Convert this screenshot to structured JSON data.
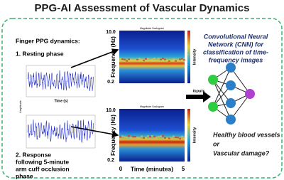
{
  "title": "PPG-AI Assessment of Vascular Dynamics",
  "left_panel": {
    "heading": "Finger PPG dynamics:",
    "phase_1": "1. Resting phase",
    "phase_2_lines": [
      "2. Response",
      "following 5-minute",
      "arm cuff occlusion",
      "phase"
    ],
    "signal_y_label": "Amplitude",
    "signal_x_label": "Time (s)"
  },
  "scalograms": [
    {
      "title": "Magnitude Scalogram",
      "y_max": "10.0",
      "y_min": "0.2",
      "y_label": "Frequency (Hz)",
      "colorbar_label": "Intensity"
    },
    {
      "title": "Magnitude Scalogram",
      "y_max": "10.0",
      "y_min": "0.2",
      "y_label": "Frequency (Hz)",
      "colorbar_label": "Intensity",
      "x_start": "0",
      "x_label": "Time (minutes)",
      "x_end": "5"
    }
  ],
  "arrow_label": "Inputs",
  "cnn": {
    "lines": [
      "Convolutional Neural",
      "Network (CNN) for",
      "classification of time-",
      "frequency images"
    ]
  },
  "outcome": {
    "lines": [
      "Healthy blood vessels",
      "or",
      "Vascular damage?"
    ]
  }
}
